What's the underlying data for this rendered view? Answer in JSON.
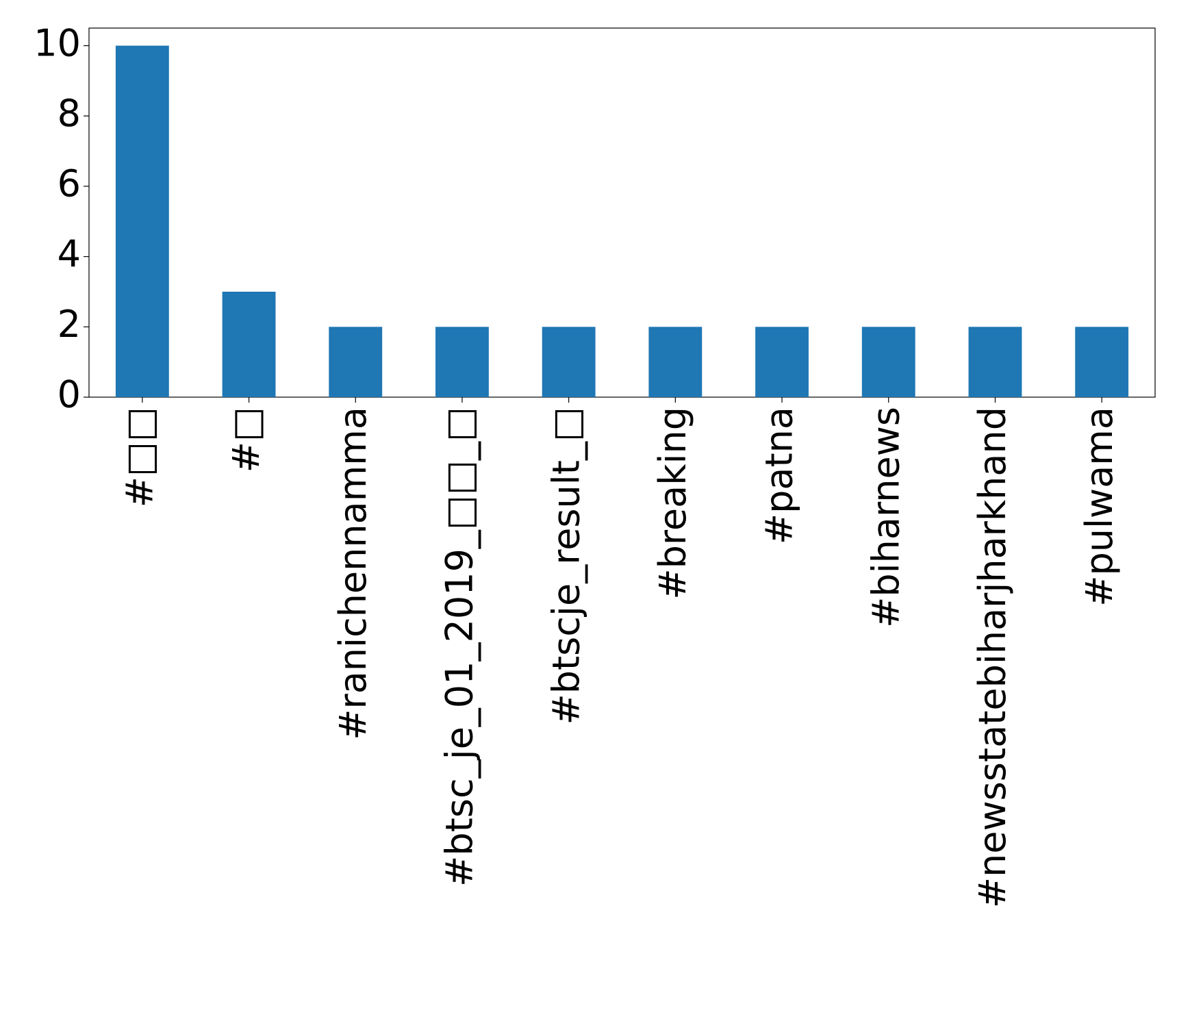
{
  "chart_data": {
    "type": "bar",
    "categories": [
      "#□□",
      "#□",
      "#ranichennamma",
      "#btsc_je_01_2019_□□_□",
      "#btscje_result_□",
      "#breaking",
      "#patna",
      "#biharnews",
      "#newsstatebiharjharkhand",
      "#pulwama"
    ],
    "values": [
      10,
      3,
      2,
      2,
      2,
      2,
      2,
      2,
      2,
      2
    ],
    "color": "#1f77b4",
    "ylim": [
      0,
      10.5
    ],
    "yticks": [
      0,
      2,
      4,
      6,
      8,
      10
    ],
    "grid": false
  }
}
